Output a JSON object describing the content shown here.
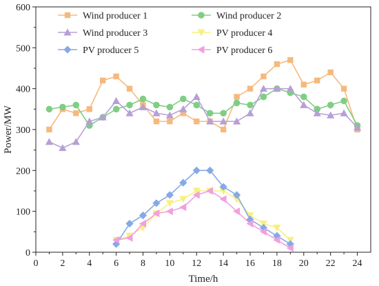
{
  "chart_data": {
    "type": "line",
    "title": "",
    "xlabel": "Time/h",
    "ylabel": "Power/MW",
    "xlim": [
      0,
      25
    ],
    "ylim": [
      0,
      600
    ],
    "x_ticks": [
      0,
      2,
      4,
      6,
      8,
      10,
      12,
      14,
      16,
      18,
      20,
      22,
      24
    ],
    "y_ticks": [
      0,
      100,
      200,
      300,
      400,
      500,
      600
    ],
    "grid": false,
    "legend_position": "top",
    "series": [
      {
        "name": "Wind producer 1",
        "color": "#f5b97e",
        "marker": "square",
        "x": [
          1,
          2,
          3,
          4,
          5,
          6,
          7,
          8,
          9,
          10,
          11,
          12,
          13,
          14,
          15,
          16,
          17,
          18,
          19,
          20,
          21,
          22,
          23,
          24
        ],
        "values": [
          300,
          350,
          340,
          350,
          420,
          430,
          400,
          360,
          320,
          320,
          340,
          320,
          320,
          300,
          380,
          400,
          430,
          460,
          470,
          410,
          420,
          440,
          400,
          300
        ]
      },
      {
        "name": "Wind producer 2",
        "color": "#7fce84",
        "marker": "circle",
        "x": [
          1,
          2,
          3,
          4,
          5,
          6,
          7,
          8,
          9,
          10,
          11,
          12,
          13,
          14,
          15,
          16,
          17,
          18,
          19,
          20,
          21,
          22,
          23,
          24
        ],
        "values": [
          350,
          355,
          360,
          310,
          330,
          350,
          360,
          375,
          360,
          355,
          375,
          360,
          340,
          340,
          365,
          360,
          380,
          400,
          390,
          380,
          350,
          360,
          370,
          310
        ]
      },
      {
        "name": "Wind producer 3",
        "color": "#b79fd6",
        "marker": "triangle-up",
        "x": [
          1,
          2,
          3,
          4,
          5,
          6,
          7,
          8,
          9,
          10,
          11,
          12,
          13,
          14,
          15,
          16,
          17,
          18,
          19,
          20,
          21,
          22,
          23,
          24
        ],
        "values": [
          270,
          255,
          270,
          320,
          330,
          370,
          340,
          355,
          340,
          335,
          350,
          380,
          320,
          320,
          320,
          340,
          400,
          400,
          400,
          360,
          340,
          335,
          340,
          305
        ]
      },
      {
        "name": "PV producer 4",
        "color": "#f7f080",
        "marker": "triangle-down",
        "x": [
          6,
          7,
          8,
          9,
          10,
          11,
          12,
          13,
          14,
          15,
          16,
          17,
          18,
          19
        ],
        "values": [
          30,
          40,
          60,
          95,
          120,
          130,
          150,
          150,
          150,
          130,
          90,
          70,
          60,
          30
        ]
      },
      {
        "name": "PV producer 5",
        "color": "#86a9e6",
        "marker": "diamond",
        "x": [
          6,
          7,
          8,
          9,
          10,
          11,
          12,
          13,
          14,
          15,
          16,
          17,
          18,
          19
        ],
        "values": [
          20,
          70,
          90,
          120,
          140,
          170,
          200,
          200,
          160,
          140,
          80,
          60,
          40,
          20
        ]
      },
      {
        "name": "PV producer 6",
        "color": "#f29fe0",
        "marker": "triangle-left",
        "x": [
          6,
          7,
          8,
          9,
          10,
          11,
          12,
          13,
          14,
          15,
          16,
          17,
          18,
          19
        ],
        "values": [
          30,
          35,
          70,
          95,
          100,
          110,
          140,
          150,
          130,
          100,
          70,
          50,
          30,
          10
        ]
      }
    ]
  }
}
